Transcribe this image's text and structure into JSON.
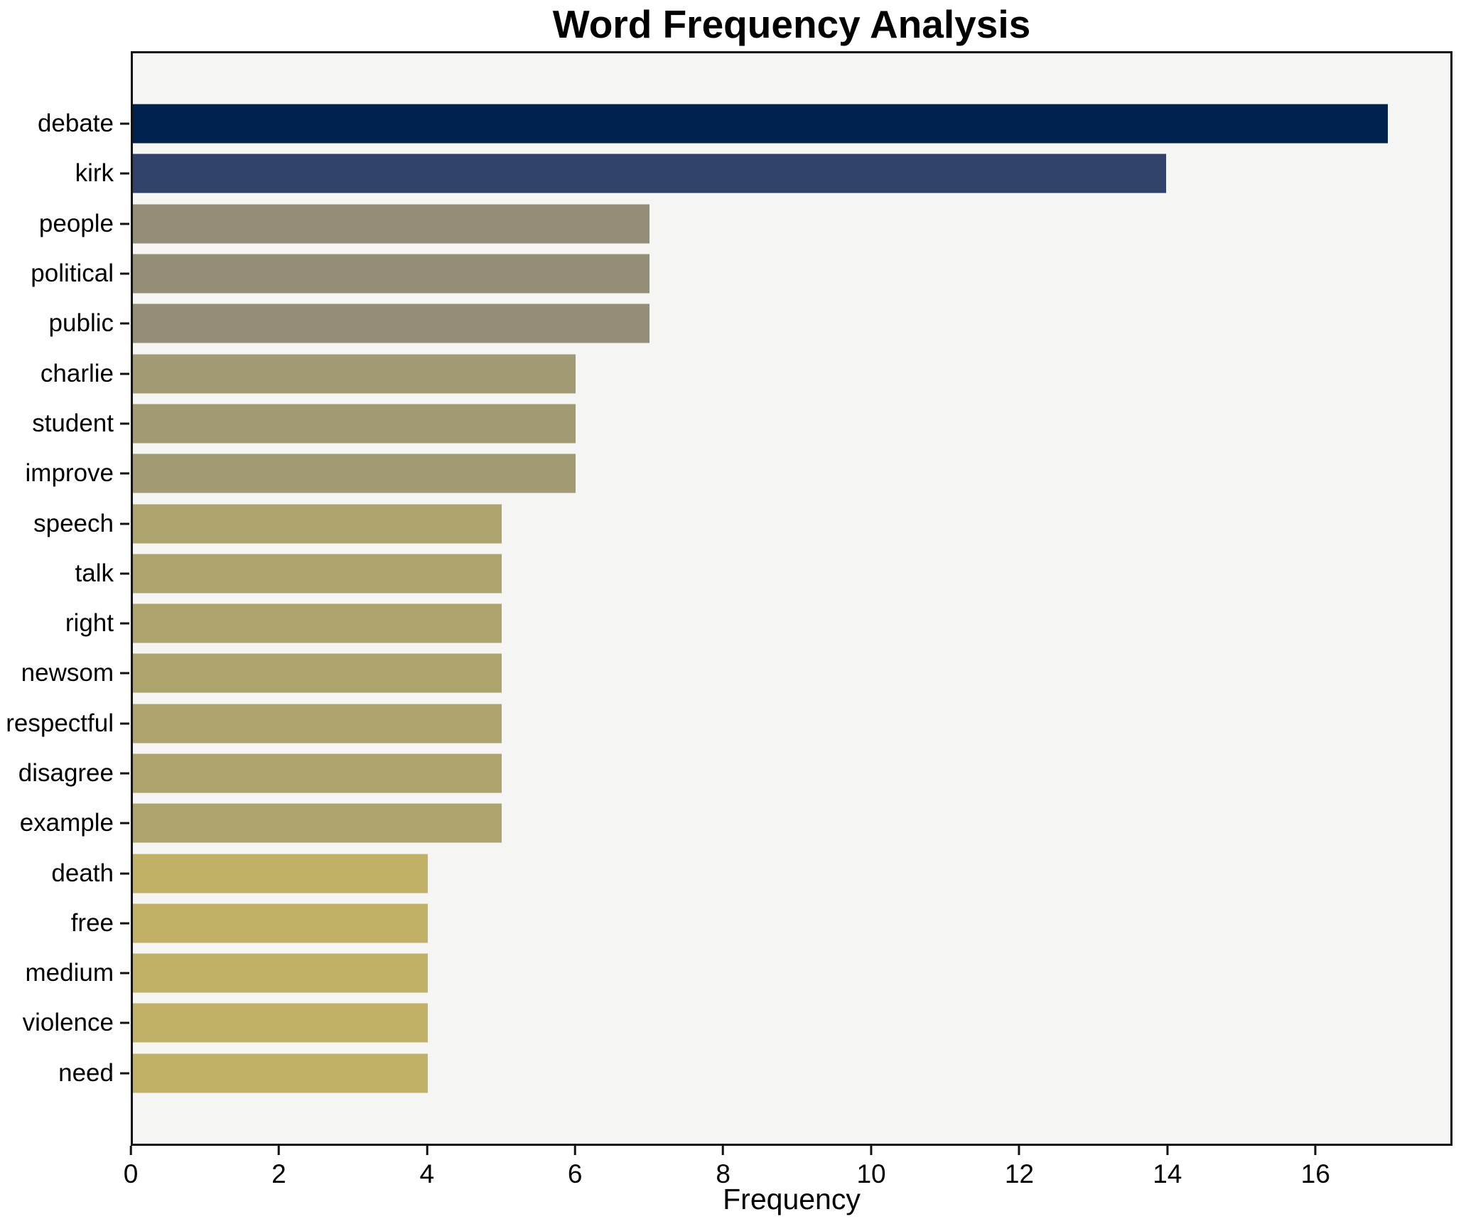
{
  "title": "Word Frequency Analysis",
  "xlabel": "Frequency",
  "chart_data": {
    "type": "bar",
    "orientation": "horizontal",
    "title": "Word Frequency Analysis",
    "xlabel": "Frequency",
    "ylabel": "",
    "categories": [
      "debate",
      "kirk",
      "people",
      "political",
      "public",
      "charlie",
      "student",
      "improve",
      "speech",
      "talk",
      "right",
      "newsom",
      "respectful",
      "disagree",
      "example",
      "death",
      "free",
      "medium",
      "violence",
      "need"
    ],
    "values": [
      17,
      14,
      7,
      7,
      7,
      6,
      6,
      6,
      5,
      5,
      5,
      5,
      5,
      5,
      5,
      4,
      4,
      4,
      4,
      4
    ],
    "bar_colors": [
      "#00224e",
      "#31436b",
      "#948e77",
      "#948e77",
      "#948e77",
      "#a19a73",
      "#a19a73",
      "#a19a73",
      "#ada36d",
      "#ada36d",
      "#ada36d",
      "#ada36d",
      "#ada36d",
      "#ada36d",
      "#ada36d",
      "#c0b167",
      "#c0b167",
      "#c0b167",
      "#c0b167",
      "#c0b167"
    ],
    "xlim": [
      0,
      17.85
    ],
    "xticks": [
      0,
      2,
      4,
      6,
      8,
      10,
      12,
      14,
      16
    ],
    "grid": false,
    "legend": false,
    "plot_bg": "#f5f5f3",
    "fig_bg": "#ffffff"
  }
}
